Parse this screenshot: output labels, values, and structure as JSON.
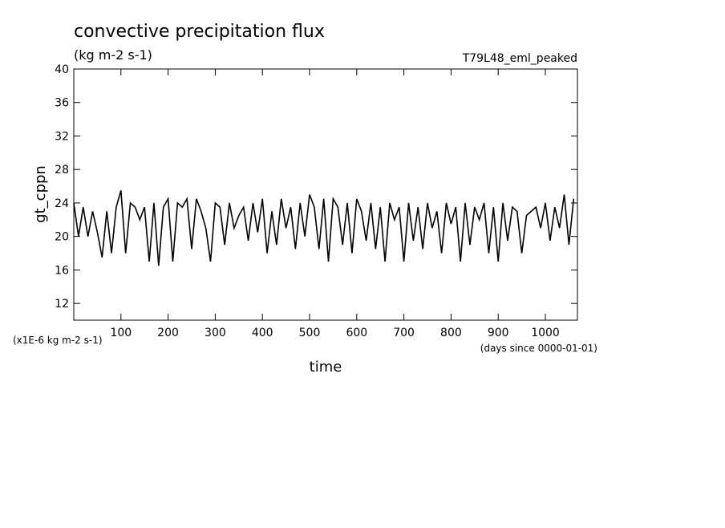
{
  "chart_data": {
    "type": "line",
    "title": "convective precipitation flux",
    "subtitle": "(kg m-2 s-1)",
    "annotation": "T79L48_eml_peaked",
    "ylabel": "gt_cppn",
    "xlabel": "time",
    "y_unit_note": "(x1E-6 kg m-2 s-1)",
    "x_unit_note": "(days since 0000-01-01)",
    "xlim": [
      0,
      1068
    ],
    "ylim": [
      10,
      40
    ],
    "xticks": [
      100,
      200,
      300,
      400,
      500,
      600,
      700,
      800,
      900,
      1000
    ],
    "yticks": [
      12,
      16,
      20,
      24,
      28,
      32,
      36,
      40
    ],
    "x": [
      0,
      10,
      20,
      30,
      40,
      50,
      60,
      70,
      80,
      90,
      100,
      110,
      120,
      130,
      140,
      150,
      160,
      170,
      180,
      190,
      200,
      210,
      220,
      230,
      240,
      250,
      260,
      270,
      280,
      290,
      300,
      310,
      320,
      330,
      340,
      350,
      360,
      370,
      380,
      390,
      400,
      410,
      420,
      430,
      440,
      450,
      460,
      470,
      480,
      490,
      500,
      510,
      520,
      530,
      540,
      550,
      560,
      570,
      580,
      590,
      600,
      610,
      620,
      630,
      640,
      650,
      660,
      670,
      680,
      690,
      700,
      710,
      720,
      730,
      740,
      750,
      760,
      770,
      780,
      790,
      800,
      810,
      820,
      830,
      840,
      850,
      860,
      870,
      880,
      890,
      900,
      910,
      920,
      930,
      940,
      950,
      960,
      970,
      980,
      990,
      1000,
      1010,
      1020,
      1030,
      1040,
      1050,
      1060
    ],
    "series": [
      {
        "name": "gt_cppn",
        "color": "#000000",
        "values": [
          24,
          20,
          23.5,
          20,
          23,
          20.5,
          17.5,
          23,
          18,
          23.5,
          25.5,
          18,
          24,
          23.5,
          22,
          23.5,
          17,
          24,
          16.5,
          23.5,
          24.5,
          17,
          24,
          23.5,
          24.5,
          18.5,
          24.5,
          23,
          21,
          17,
          24,
          23.5,
          19,
          24,
          21,
          22.5,
          23.5,
          19.5,
          24,
          20.5,
          24.5,
          18,
          23,
          19,
          24.5,
          21,
          23.5,
          18.5,
          24,
          20,
          25,
          23.5,
          18.5,
          24.5,
          17,
          24.5,
          23.5,
          19,
          24,
          18,
          24.5,
          23,
          19.5,
          24,
          18.5,
          23.5,
          17,
          24,
          22,
          23.5,
          17,
          24,
          19.5,
          23.5,
          18.5,
          24,
          21,
          23,
          18,
          24,
          21.5,
          23.5,
          17,
          24,
          19,
          23.5,
          22,
          24,
          18,
          23.5,
          17,
          24,
          19.5,
          23.5,
          23,
          18,
          22.5,
          23,
          23.5,
          21,
          24,
          19.5,
          23.5,
          21,
          25,
          19,
          24.5
        ]
      }
    ]
  }
}
